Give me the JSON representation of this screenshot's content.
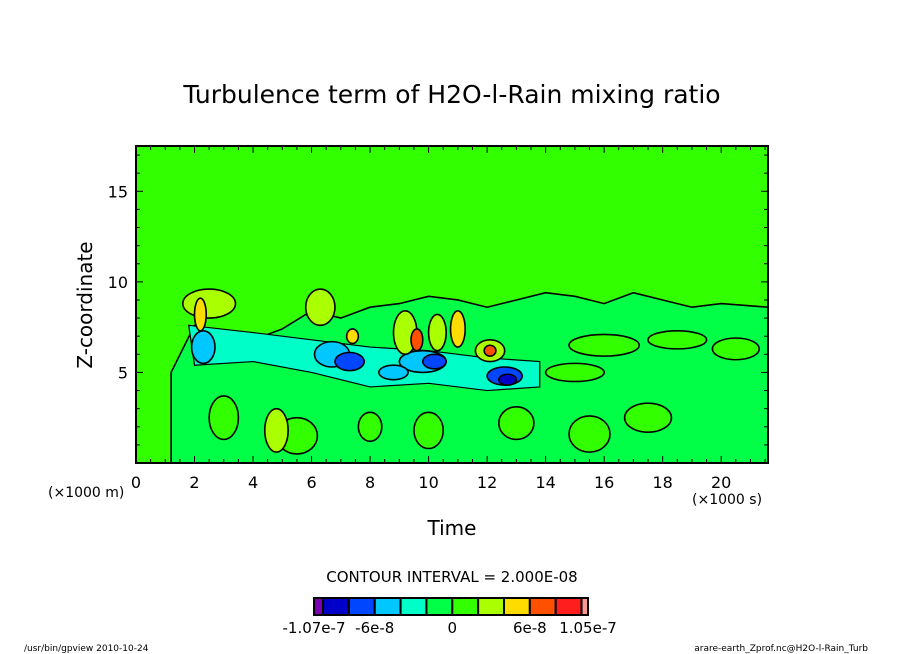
{
  "chart_data": {
    "type": "heatmap",
    "title": "Turbulence term of H2O-l-Rain mixing ratio",
    "xlabel": "Time",
    "ylabel": "Z-coordinate",
    "x_unit": "(×1000 s)",
    "y_unit": "(×1000 m)",
    "xlim": [
      0,
      21.6
    ],
    "ylim": [
      0,
      17.5
    ],
    "x_ticks": [
      0,
      2,
      4,
      6,
      8,
      10,
      12,
      14,
      16,
      18,
      20
    ],
    "x_tick_labels": [
      "0",
      "2",
      "4",
      "6",
      "8",
      "10",
      "12",
      "14",
      "16",
      "18",
      "20"
    ],
    "y_ticks": [
      5,
      10,
      15
    ],
    "y_tick_labels": [
      "5",
      "10",
      "15"
    ],
    "background_value": 0,
    "contour_interval_text": "CONTOUR INTERVAL = 2.000E-08",
    "contour_interval": 2e-08,
    "colorbar": {
      "min": -1.07e-07,
      "max": 1.05e-07,
      "tick_labels": [
        "-1.07e-7",
        "-6e-8",
        "0",
        "6e-8",
        "1.05e-7"
      ],
      "bins": [
        {
          "lo": -1.07e-07,
          "hi": -1e-07,
          "color": "#7b00b4"
        },
        {
          "lo": -1e-07,
          "hi": -8e-08,
          "color": "#0000c8"
        },
        {
          "lo": -8e-08,
          "hi": -6e-08,
          "color": "#0046ff"
        },
        {
          "lo": -6e-08,
          "hi": -4e-08,
          "color": "#00c8ff"
        },
        {
          "lo": -4e-08,
          "hi": -2e-08,
          "color": "#00ffc8"
        },
        {
          "lo": -2e-08,
          "hi": 0,
          "color": "#00ff46"
        },
        {
          "lo": 0,
          "hi": 2e-08,
          "color": "#32ff00"
        },
        {
          "lo": 2e-08,
          "hi": 4e-08,
          "color": "#aaff00"
        },
        {
          "lo": 4e-08,
          "hi": 6e-08,
          "color": "#ffdc00"
        },
        {
          "lo": 6e-08,
          "hi": 8e-08,
          "color": "#ff5000"
        },
        {
          "lo": 8e-08,
          "hi": 1e-07,
          "color": "#ff1e1e"
        },
        {
          "lo": 1e-07,
          "hi": 1.05e-07,
          "color": "#ff9696"
        }
      ]
    },
    "features": [
      {
        "name": "negative-band",
        "description": "Band of negative values (blue/cyan) sloping from ~6.5 km at t=2 to ~4.5 km at t=13",
        "t_range": [
          1.8,
          14
        ],
        "z_center": [
          7,
          4.8
        ],
        "min_value": -1e-07
      },
      {
        "name": "positive-cells",
        "description": "Positive cells (yellow/orange) above the negative band",
        "t_range": [
          2,
          13
        ],
        "z_range": [
          6,
          10
        ],
        "max_value": 8e-08
      },
      {
        "name": "weak-negative-region",
        "description": "Weak negative values (green) between t=13 and t=21.6, z < 10",
        "t_range": [
          13,
          21.6
        ],
        "z_range": [
          0,
          10
        ]
      }
    ]
  },
  "footer": {
    "left": "/usr/bin/gpview   2010-10-24",
    "right": "arare-earth_Zprof.nc@H2O-l-Rain_Turb"
  }
}
